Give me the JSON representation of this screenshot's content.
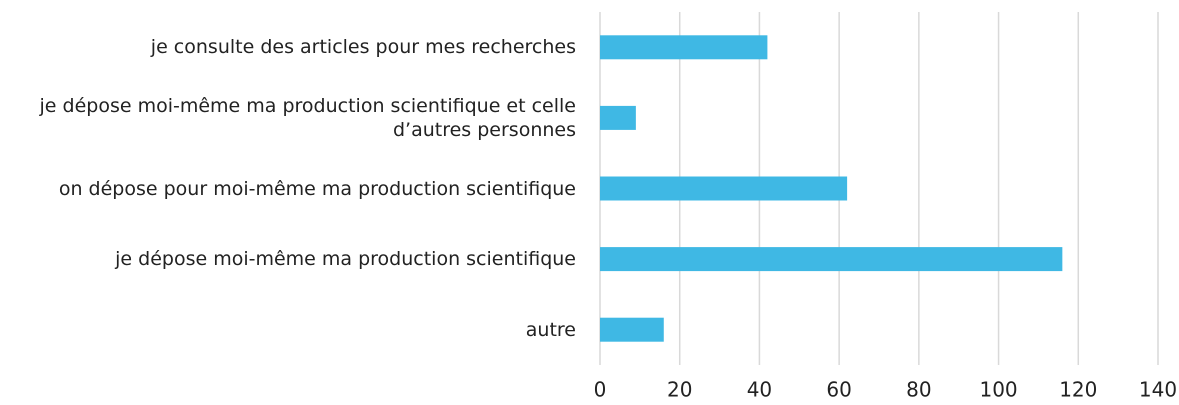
{
  "chart_data": {
    "type": "barh",
    "categories": [
      "je consulte des articles pour mes recherches",
      "je dépose moi-même ma production scientifique et celle d’autres personnes",
      "on dépose pour moi-même ma production scientifique",
      "je dépose moi-même ma production scientifique",
      "autre"
    ],
    "values": [
      42,
      9,
      62,
      116,
      16
    ],
    "color": "#3fb8e4",
    "xlim": [
      0,
      140
    ],
    "xticks": [
      0,
      20,
      40,
      60,
      80,
      100,
      120,
      140
    ],
    "grid": true
  }
}
